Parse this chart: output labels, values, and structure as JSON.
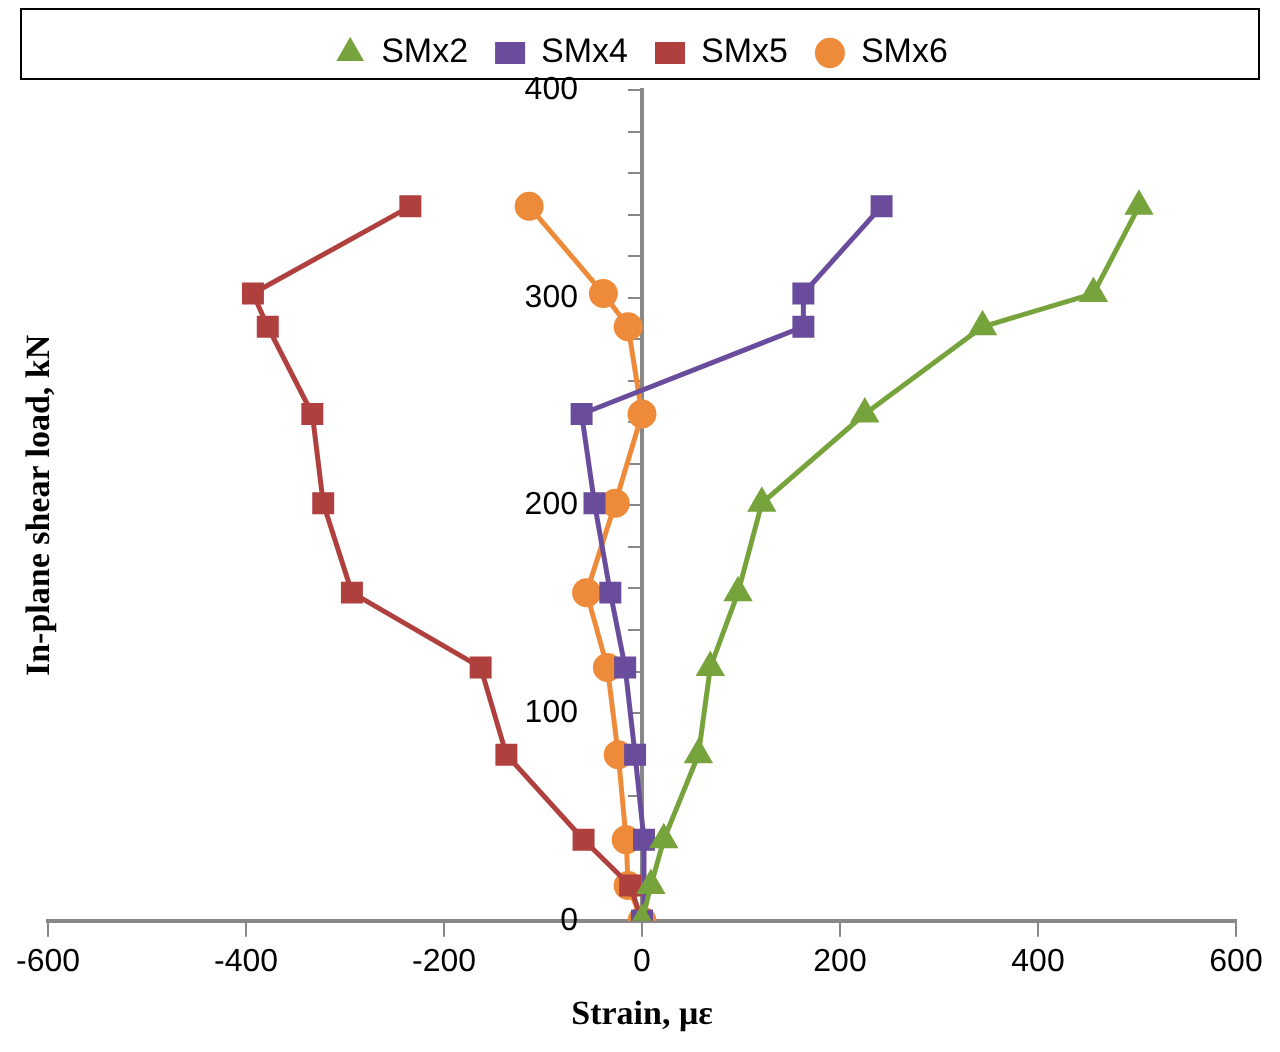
{
  "chart_data": {
    "type": "line",
    "xlabel": "Strain, με",
    "ylabel": "In-plane shear load, kN",
    "xlim": [
      -600,
      600
    ],
    "xticks": [
      -600,
      -400,
      -200,
      0,
      200,
      400,
      600
    ],
    "ylim": [
      0,
      400
    ],
    "yticks": [
      0,
      {
        "value": 20,
        "label": null
      },
      {
        "value": 40,
        "label": null
      },
      {
        "value": 60,
        "label": null
      },
      {
        "value": 80,
        "label": null
      },
      100,
      {
        "value": 120,
        "label": null
      },
      {
        "value": 140,
        "label": null
      },
      {
        "value": 160,
        "label": null
      },
      {
        "value": 180,
        "label": null
      },
      200,
      {
        "value": 220,
        "label": null
      },
      {
        "value": 240,
        "label": null
      },
      {
        "value": 260,
        "label": null
      },
      {
        "value": 280,
        "label": null
      },
      300,
      {
        "value": 320,
        "label": null
      },
      {
        "value": 340,
        "label": null
      },
      {
        "value": 360,
        "label": null
      },
      {
        "value": 380,
        "label": null
      },
      400
    ],
    "grid": false,
    "legend": "top",
    "line_style": "solid",
    "series": [
      {
        "name": "SMx2",
        "color": "#77a33c",
        "marker": "triangle",
        "x": [
          0,
          9,
          22,
          57,
          69,
          97,
          121,
          225,
          344,
          456,
          502
        ],
        "values": [
          0,
          17,
          39,
          80,
          122,
          158,
          201,
          244,
          286,
          302,
          344
        ]
      },
      {
        "name": "SMx4",
        "color": "#6a4c9c",
        "marker": "square",
        "x": [
          0,
          null,
          2,
          -7,
          -17,
          -32,
          -48,
          -61,
          163,
          163,
          242
        ],
        "values": [
          0,
          null,
          39,
          80,
          122,
          158,
          201,
          244,
          286,
          302,
          344
        ]
      },
      {
        "name": "SMx5",
        "color": "#b0403e",
        "marker": "square",
        "x": [
          0,
          -12,
          -59,
          -137,
          -163,
          -293,
          -322,
          -333,
          -378,
          -393,
          -234
        ],
        "values": [
          0,
          17,
          39,
          80,
          122,
          158,
          201,
          244,
          286,
          302,
          344
        ]
      },
      {
        "name": "SMx6",
        "color": "#ee8b3a",
        "marker": "circle",
        "x": [
          0,
          -14,
          -16,
          -24,
          -35,
          -56,
          -27,
          0,
          -14,
          -39,
          -114
        ],
        "values": [
          0,
          17,
          39,
          80,
          122,
          158,
          201,
          244,
          286,
          302,
          344
        ]
      }
    ]
  }
}
